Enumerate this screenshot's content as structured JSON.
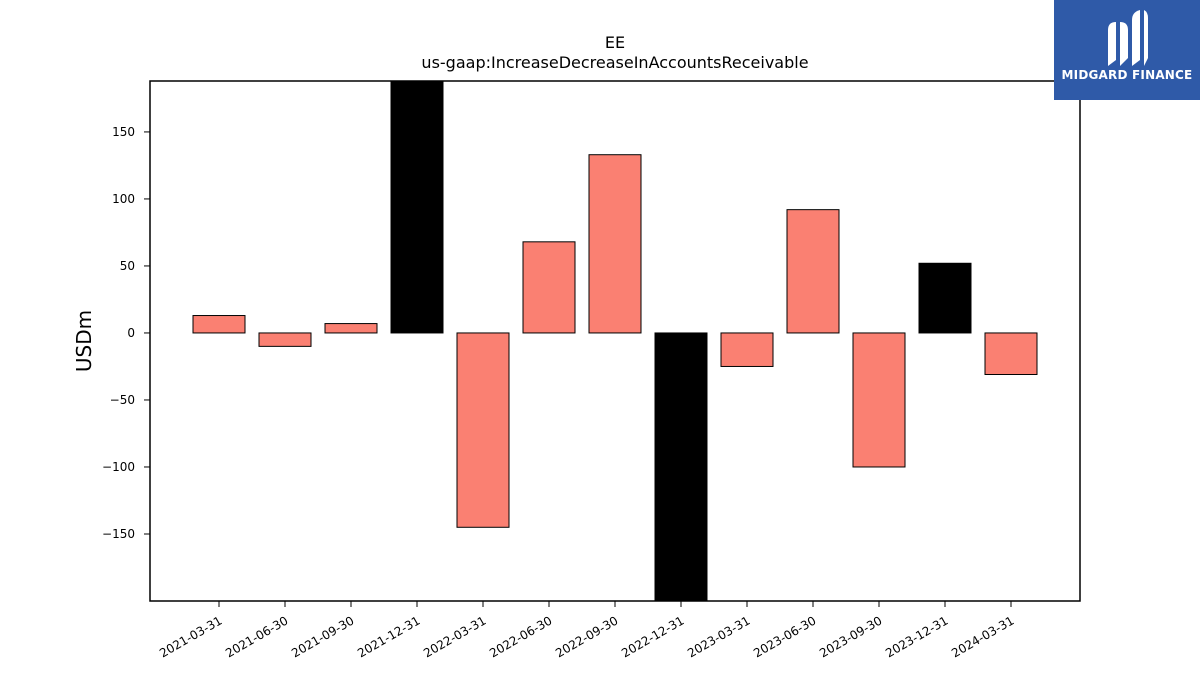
{
  "colors": {
    "positive": "#fa8072",
    "highlight": "#000000",
    "logo_bg": "#2f5aa8"
  },
  "logo": {
    "icon": "midgard-logo-icon",
    "text": "MIDGARD FINANCE"
  },
  "chart_data": {
    "type": "bar",
    "title": "EE",
    "subtitle": "us-gaap:IncreaseDecreaseInAccountsReceivable",
    "xlabel": "",
    "ylabel": "USDm",
    "ylim": [
      -200,
      188
    ],
    "yticks": [
      -150,
      -100,
      -50,
      0,
      50,
      100,
      150
    ],
    "ytick_labels": [
      "−150",
      "−100",
      "−50",
      "0",
      "50",
      "100",
      "150"
    ],
    "grid": false,
    "categories": [
      "2021-03-31",
      "2021-06-30",
      "2021-09-30",
      "2021-12-31",
      "2022-03-31",
      "2022-06-30",
      "2022-09-30",
      "2022-12-31",
      "2023-03-31",
      "2023-06-30",
      "2023-09-30",
      "2023-12-31",
      "2024-03-31"
    ],
    "values": [
      13,
      -10,
      7,
      188,
      -145,
      68,
      133,
      -200,
      -25,
      92,
      -100,
      52,
      -31
    ],
    "highlighted": [
      false,
      false,
      false,
      true,
      false,
      false,
      false,
      true,
      false,
      false,
      false,
      true,
      false
    ]
  }
}
